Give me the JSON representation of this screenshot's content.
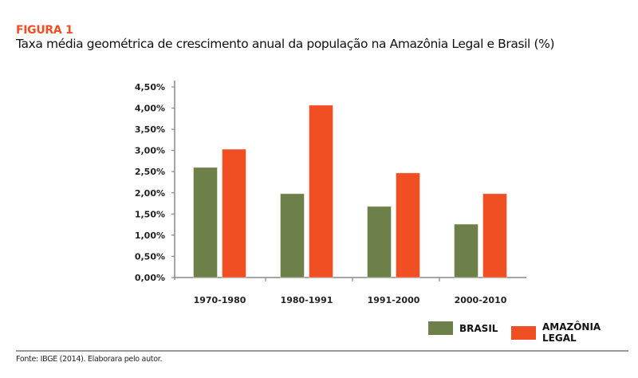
{
  "figure_label": "FIGURA 1",
  "source": "Fonte: IBGE (2014). Elaborara pelo autor.",
  "colors": {
    "brasil": "#6e804a",
    "amazonia": "#f04e23",
    "accent": "#f04e23"
  },
  "chart_data": {
    "type": "bar",
    "title": "Taxa média geométrica de crescimento anual da população na Amazônia Legal e Brasil (%)",
    "categories": [
      "1970-1980",
      "1980-1991",
      "1991-2000",
      "2000-2010"
    ],
    "series": [
      {
        "name": "BRASIL",
        "values": [
          2.6,
          1.98,
          1.68,
          1.26
        ]
      },
      {
        "name": "AMAZÔNIA LEGAL",
        "values": [
          3.03,
          4.07,
          2.47,
          1.98
        ]
      }
    ],
    "yticks": [
      "0,00%",
      "0,50%",
      "1,00%",
      "1,50%",
      "2,00%",
      "2,50%",
      "3,00%",
      "3,50%",
      "4,00%",
      "4,50%"
    ],
    "ylim": [
      0,
      4.5
    ],
    "grid": false,
    "legend_position": "bottom-right"
  }
}
